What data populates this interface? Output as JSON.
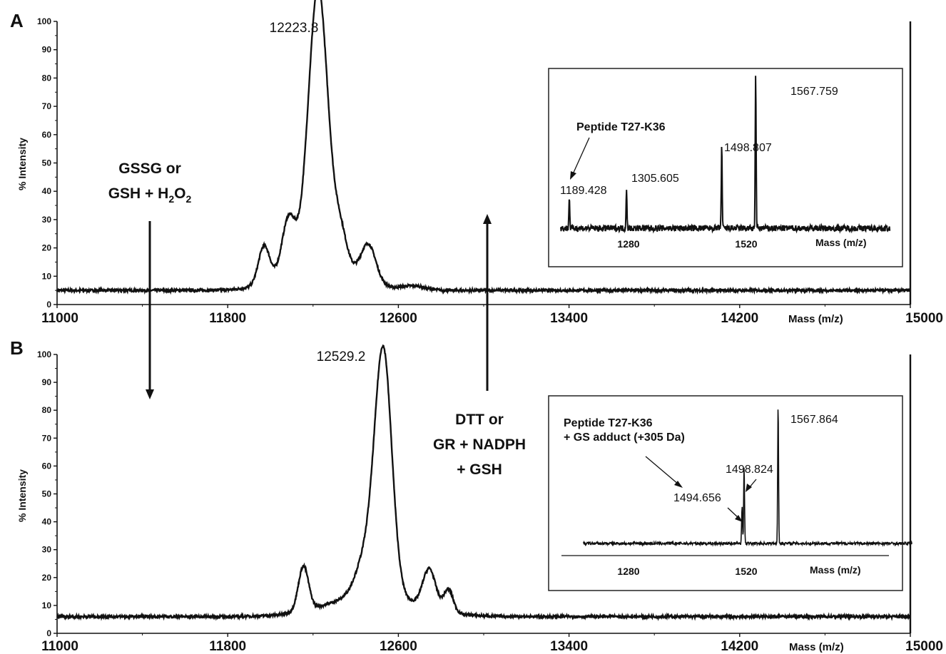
{
  "panels": [
    {
      "letter": "A",
      "ylabel": "% Intensity",
      "xlabel": "Mass (m/z)",
      "peak_label": "12223.8",
      "ann": {
        "line1": "GSSG or",
        "line2_pre": "GSH + H",
        "sub1": "2",
        "mid": "O",
        "sub2": "2"
      }
    },
    {
      "letter": "B",
      "ylabel": "% Intensity",
      "xlabel": "Mass (m/z)",
      "peak_label": "12529.2",
      "ann": {
        "line1": "DTT or",
        "line2": "GR + NADPH",
        "line3": "+ GSH"
      }
    }
  ],
  "insets": [
    {
      "xlabel": "Mass (m/z)",
      "xticks": [
        "1280",
        "1520"
      ],
      "annotation": [
        "Peptide T27-K36"
      ],
      "peaks": [
        {
          "label": "1189.428",
          "x": 1189.428,
          "h": 0.2
        },
        {
          "label": "1305.605",
          "x": 1305.605,
          "h": 0.27
        },
        {
          "label": "1498.807",
          "x": 1498.807,
          "h": 0.55
        },
        {
          "label": "1567.759",
          "x": 1567.759,
          "h": 1.0
        }
      ]
    },
    {
      "xlabel": "Mass (m/z)",
      "xticks": [
        "1280",
        "1520"
      ],
      "annotation": [
        "Peptide T27-K36",
        "+ GS adduct (+305 Da)"
      ],
      "peaks": [
        {
          "label": "1494.656",
          "x": 1494.656,
          "h": 0.26
        },
        {
          "label": "1498.824",
          "x": 1498.824,
          "h": 0.55
        },
        {
          "label": "1567.864",
          "x": 1567.864,
          "h": 1.0
        }
      ]
    }
  ],
  "chart_data": [
    {
      "type": "line",
      "title": "",
      "xlabel": "Mass (m/z)",
      "ylabel": "% Intensity",
      "xlim": [
        11000,
        15000
      ],
      "ylim": [
        0,
        100
      ],
      "xticks": [
        11000,
        11800,
        12600,
        13400,
        14200,
        15000
      ],
      "yticks": [
        0,
        10,
        20,
        30,
        40,
        50,
        60,
        70,
        80,
        90,
        100
      ],
      "baseline": 5,
      "peaks": [
        {
          "x": 11970,
          "y": 13,
          "w": 26
        },
        {
          "x": 12085,
          "y": 18,
          "w": 30
        },
        {
          "x": 12223.8,
          "y": 95,
          "w": 45
        },
        {
          "x": 12330,
          "y": 11,
          "w": 30
        },
        {
          "x": 12460,
          "y": 13,
          "w": 35
        },
        {
          "x": 12670,
          "y": 1.5,
          "w": 55
        },
        {
          "x": 12223.8,
          "y": 12,
          "w": 150
        }
      ]
    },
    {
      "type": "line",
      "title": "",
      "xlabel": "Mass (m/z)",
      "ylabel": "% Intensity",
      "xlim": [
        11000,
        15000
      ],
      "ylim": [
        0,
        100
      ],
      "xticks": [
        11000,
        11800,
        12600,
        13400,
        14200,
        15000
      ],
      "yticks": [
        0,
        10,
        20,
        30,
        40,
        50,
        60,
        70,
        80,
        90,
        100
      ],
      "baseline": 6,
      "peaks": [
        {
          "x": 12155,
          "y": 16,
          "w": 24
        },
        {
          "x": 12445,
          "y": 13,
          "w": 45
        },
        {
          "x": 12529.2,
          "y": 87,
          "w": 40
        },
        {
          "x": 12745,
          "y": 14,
          "w": 30
        },
        {
          "x": 12835,
          "y": 8,
          "w": 22
        },
        {
          "x": 12480,
          "y": 8,
          "w": 200
        }
      ]
    }
  ]
}
